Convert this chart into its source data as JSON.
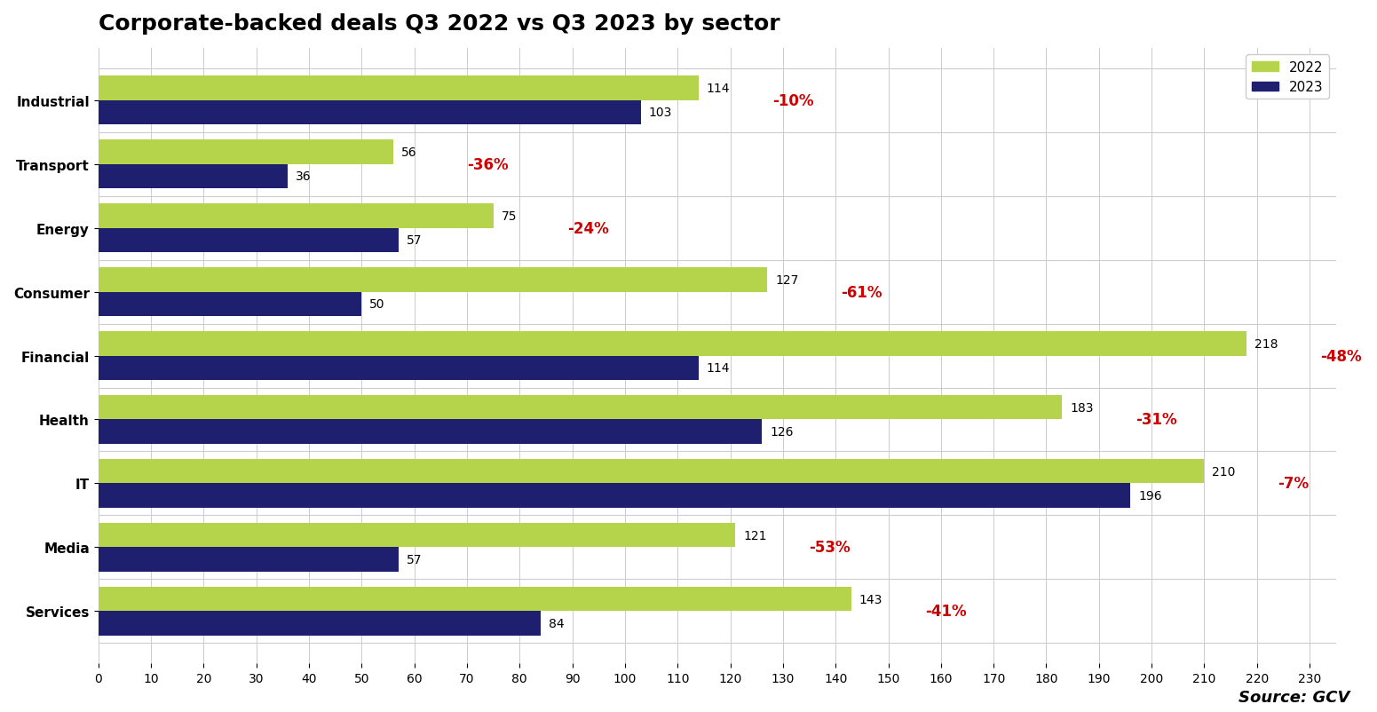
{
  "title": "Corporate-backed deals Q3 2022 vs Q3 2023 by sector",
  "sectors": [
    "Industrial",
    "Transport",
    "Energy",
    "Consumer",
    "Financial",
    "Health",
    "IT",
    "Media",
    "Services"
  ],
  "values_2022": [
    114,
    56,
    75,
    127,
    218,
    183,
    210,
    121,
    143
  ],
  "values_2023": [
    103,
    36,
    57,
    50,
    114,
    126,
    196,
    57,
    84
  ],
  "pct_changes": [
    "-10%",
    "-36%",
    "-24%",
    "-61%",
    "-48%",
    "-31%",
    "-7%",
    "-53%",
    "-41%"
  ],
  "color_2022": "#b5d44b",
  "color_2023": "#1e1f6e",
  "pct_color": "#cc0000",
  "background_color": "#ffffff",
  "xlim": [
    0,
    235
  ],
  "xticks": [
    0,
    10,
    20,
    30,
    40,
    50,
    60,
    70,
    80,
    90,
    100,
    110,
    120,
    130,
    140,
    150,
    160,
    170,
    180,
    190,
    200,
    210,
    220,
    230
  ],
  "bar_height": 0.38,
  "title_fontsize": 18,
  "label_fontsize": 11,
  "tick_fontsize": 10,
  "value_fontsize": 10,
  "pct_fontsize": 12,
  "source_text": "Source: GCV",
  "legend_labels": [
    "2022",
    "2023"
  ]
}
